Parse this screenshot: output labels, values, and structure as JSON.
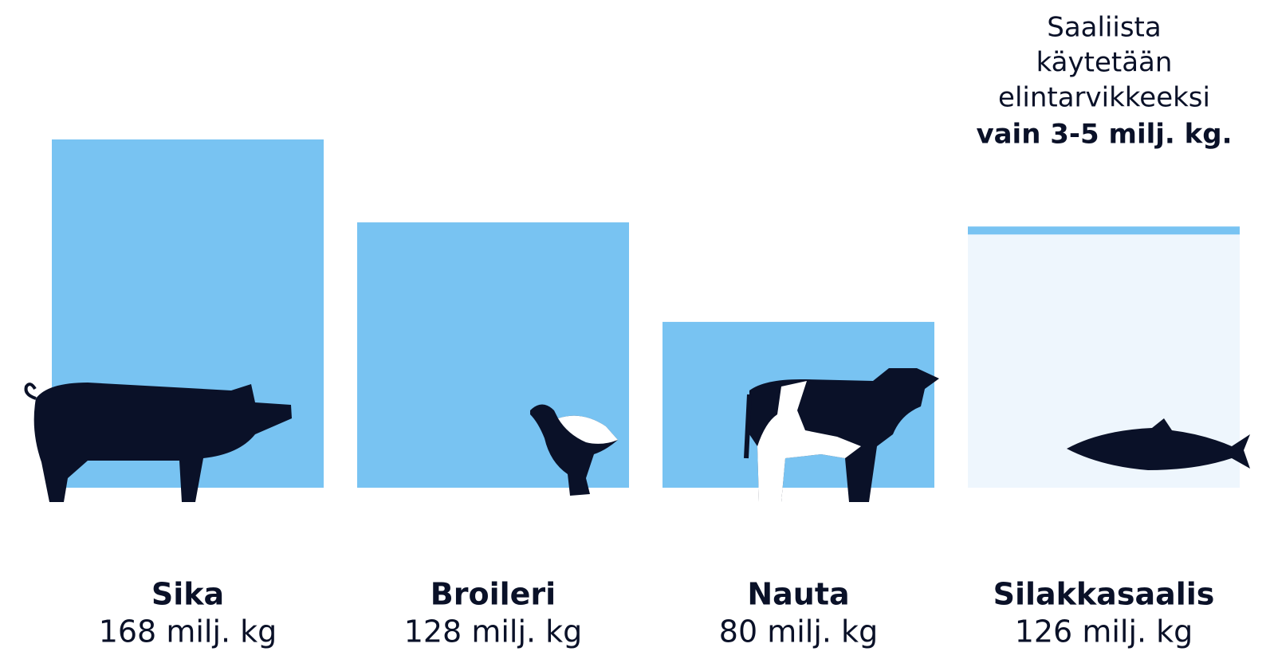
{
  "chart_data": {
    "type": "bar",
    "categories": [
      "Sika",
      "Broileri",
      "Nauta",
      "Silakkasaalis"
    ],
    "values": [
      168,
      128,
      80,
      126
    ],
    "value_labels": [
      "168 milj. kg",
      "128 milj. kg",
      "80 milj. kg",
      "126 milj. kg"
    ],
    "colors": [
      "#78c3f2",
      "#78c3f2",
      "#78c3f2",
      "#eef6fd"
    ],
    "annotation": {
      "lines": [
        "Saaliista",
        "käytetään",
        "elintarvikkeeksi"
      ],
      "emphasis": "vain 3-5 milj. kg."
    }
  }
}
